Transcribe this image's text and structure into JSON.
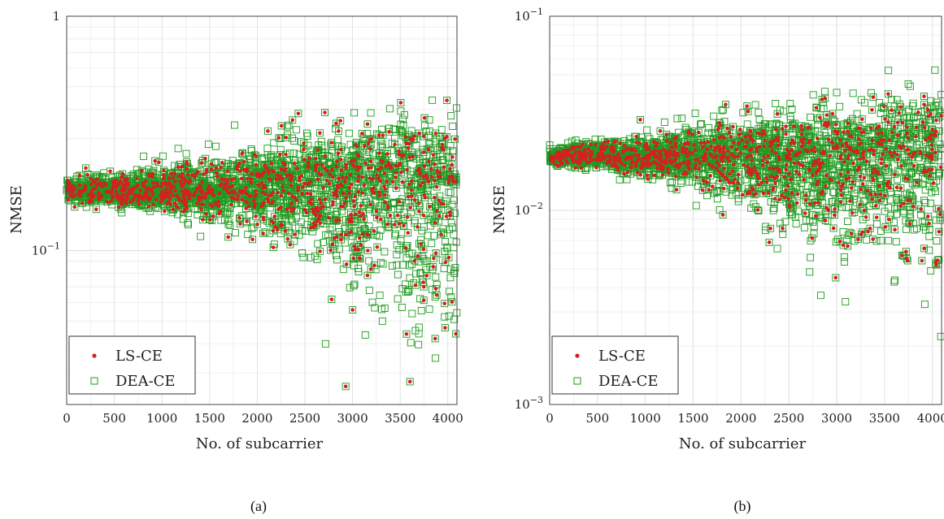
{
  "chart_data": [
    {
      "type": "scatter",
      "panel": "a",
      "caption": "(a)",
      "xlabel": "No. of subcarrier",
      "ylabel": "NMSE",
      "x_ticks": [
        "0",
        "500",
        "1000",
        "1500",
        "2000",
        "2500",
        "3000",
        "3500",
        "4000"
      ],
      "y_ticks": [
        {
          "value": 1,
          "label": "1"
        },
        {
          "value": 0.1,
          "label": "10^-1"
        }
      ],
      "xlim": [
        0,
        4096
      ],
      "ylim": [
        0.022,
        1
      ],
      "yscale": "log",
      "grid": true,
      "legend_position": "bottom-left",
      "series": [
        {
          "name": "LS-CE",
          "marker": "dot",
          "color": "#d42020"
        },
        {
          "name": "DEA-CE",
          "marker": "square",
          "color": "#1f9a1f"
        }
      ],
      "trend": {
        "description_points_x": [
          0,
          500,
          1000,
          1500,
          2000,
          2500,
          3000,
          3500,
          4096
        ],
        "center": [
          0.18,
          0.18,
          0.18,
          0.18,
          0.185,
          0.19,
          0.19,
          0.19,
          0.19
        ],
        "spread_low": [
          0.155,
          0.15,
          0.14,
          0.13,
          0.11,
          0.09,
          0.045,
          0.04,
          0.03
        ],
        "spread_high": [
          0.21,
          0.22,
          0.25,
          0.27,
          0.3,
          0.35,
          0.4,
          0.45,
          0.5
        ]
      }
    },
    {
      "type": "scatter",
      "panel": "b",
      "caption": "(b)",
      "xlabel": "No. of subcarrier",
      "ylabel": "NMSE",
      "x_ticks": [
        "0",
        "500",
        "1000",
        "1500",
        "2000",
        "2500",
        "3000",
        "3500",
        "4000"
      ],
      "y_ticks": [
        {
          "value": 0.1,
          "label": "10^-1"
        },
        {
          "value": 0.01,
          "label": "10^-2"
        },
        {
          "value": 0.001,
          "label": "10^-3"
        }
      ],
      "xlim": [
        0,
        4096
      ],
      "ylim": [
        0.001,
        0.1
      ],
      "yscale": "log",
      "grid": true,
      "legend_position": "bottom-left",
      "series": [
        {
          "name": "LS-CE",
          "marker": "dot",
          "color": "#d42020"
        },
        {
          "name": "DEA-CE",
          "marker": "square",
          "color": "#1f9a1f"
        }
      ],
      "trend": {
        "description_points_x": [
          0,
          500,
          1000,
          1500,
          2000,
          2500,
          3000,
          3500,
          4096
        ],
        "center": [
          0.019,
          0.019,
          0.019,
          0.019,
          0.019,
          0.019,
          0.019,
          0.019,
          0.019
        ],
        "spread_low": [
          0.017,
          0.016,
          0.014,
          0.012,
          0.009,
          0.006,
          0.0035,
          0.0045,
          0.0025
        ],
        "spread_high": [
          0.022,
          0.024,
          0.027,
          0.03,
          0.034,
          0.038,
          0.042,
          0.048,
          0.05
        ]
      }
    }
  ]
}
